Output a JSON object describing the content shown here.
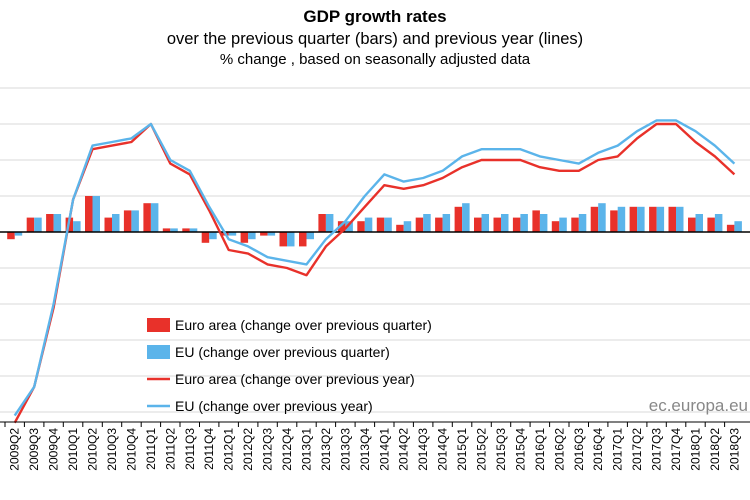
{
  "header": {
    "title": "GDP growth rates",
    "subtitle": "over the previous quarter (bars) and previous year (lines)",
    "note": "% change , based on seasonally adjusted data"
  },
  "source": "ec.europa.eu",
  "colors": {
    "euro_area": "#e8312a",
    "eu": "#5bb4ea",
    "grid": "#d9d9d9",
    "axis": "#000000"
  },
  "chart_data": {
    "type": "bar",
    "title": "GDP growth rates",
    "subtitle": "over the previous quarter (bars) and previous year (lines)",
    "ylim": [
      -5.0,
      4.0
    ],
    "grid": true,
    "legend_position": "bottom-left",
    "categories": [
      "2009Q2",
      "2009Q3",
      "2009Q4",
      "2010Q1",
      "2010Q2",
      "2010Q3",
      "2010Q4",
      "2011Q1",
      "2011Q2",
      "2011Q3",
      "2011Q4",
      "2012Q1",
      "2012Q2",
      "2012Q3",
      "2012Q4",
      "2013Q1",
      "2013Q2",
      "2013Q3",
      "2013Q4",
      "2014Q1",
      "2014Q2",
      "2014Q3",
      "2014Q4",
      "2015Q1",
      "2015Q2",
      "2015Q3",
      "2015Q4",
      "2016Q1",
      "2016Q2",
      "2016Q3",
      "2016Q4",
      "2017Q1",
      "2017Q2",
      "2017Q3",
      "2017Q4",
      "2018Q1",
      "2018Q2",
      "2018Q3"
    ],
    "series": [
      {
        "name": "Euro area (change over previous quarter)",
        "kind": "bar",
        "values": [
          -0.2,
          0.4,
          0.5,
          0.4,
          1.0,
          0.4,
          0.6,
          0.8,
          0.1,
          0.1,
          -0.3,
          -0.1,
          -0.3,
          -0.1,
          -0.4,
          -0.4,
          0.5,
          0.3,
          0.3,
          0.4,
          0.2,
          0.4,
          0.4,
          0.7,
          0.4,
          0.4,
          0.4,
          0.6,
          0.3,
          0.4,
          0.7,
          0.6,
          0.7,
          0.7,
          0.7,
          0.4,
          0.4,
          0.2
        ]
      },
      {
        "name": "EU (change over previous quarter)",
        "kind": "bar",
        "values": [
          -0.1,
          0.4,
          0.5,
          0.3,
          1.0,
          0.5,
          0.6,
          0.8,
          0.1,
          0.1,
          -0.2,
          -0.1,
          -0.2,
          -0.1,
          -0.4,
          -0.2,
          0.5,
          0.3,
          0.4,
          0.4,
          0.3,
          0.5,
          0.5,
          0.8,
          0.5,
          0.5,
          0.5,
          0.5,
          0.4,
          0.5,
          0.8,
          0.7,
          0.7,
          0.7,
          0.7,
          0.5,
          0.5,
          0.3
        ]
      },
      {
        "name": "Euro area (change over previous year)",
        "kind": "line",
        "values": [
          -5.3,
          -4.3,
          -2.1,
          0.9,
          2.3,
          2.4,
          2.5,
          3.0,
          1.9,
          1.6,
          0.6,
          -0.5,
          -0.6,
          -0.9,
          -1.0,
          -1.2,
          -0.4,
          0.1,
          0.7,
          1.3,
          1.2,
          1.3,
          1.5,
          1.8,
          2.0,
          2.0,
          2.0,
          1.8,
          1.7,
          1.7,
          2.0,
          2.1,
          2.6,
          3.0,
          3.0,
          2.5,
          2.1,
          1.6
        ]
      },
      {
        "name": "EU (change over previous year)",
        "kind": "line",
        "values": [
          -5.1,
          -4.3,
          -2.0,
          0.9,
          2.4,
          2.5,
          2.6,
          3.0,
          2.0,
          1.7,
          0.7,
          -0.2,
          -0.4,
          -0.7,
          -0.8,
          -0.9,
          -0.2,
          0.3,
          1.0,
          1.6,
          1.4,
          1.5,
          1.7,
          2.1,
          2.3,
          2.3,
          2.3,
          2.1,
          2.0,
          1.9,
          2.2,
          2.4,
          2.8,
          3.1,
          3.1,
          2.8,
          2.4,
          1.9
        ]
      }
    ]
  },
  "legend": [
    {
      "label": "Euro area (change over previous quarter)",
      "kind": "bar",
      "color": "#e8312a"
    },
    {
      "label": "EU (change over previous quarter)",
      "kind": "bar",
      "color": "#5bb4ea"
    },
    {
      "label": "Euro area (change over previous year)",
      "kind": "line",
      "color": "#e8312a"
    },
    {
      "label": "EU (change over previous year)",
      "kind": "line",
      "color": "#5bb4ea"
    }
  ]
}
